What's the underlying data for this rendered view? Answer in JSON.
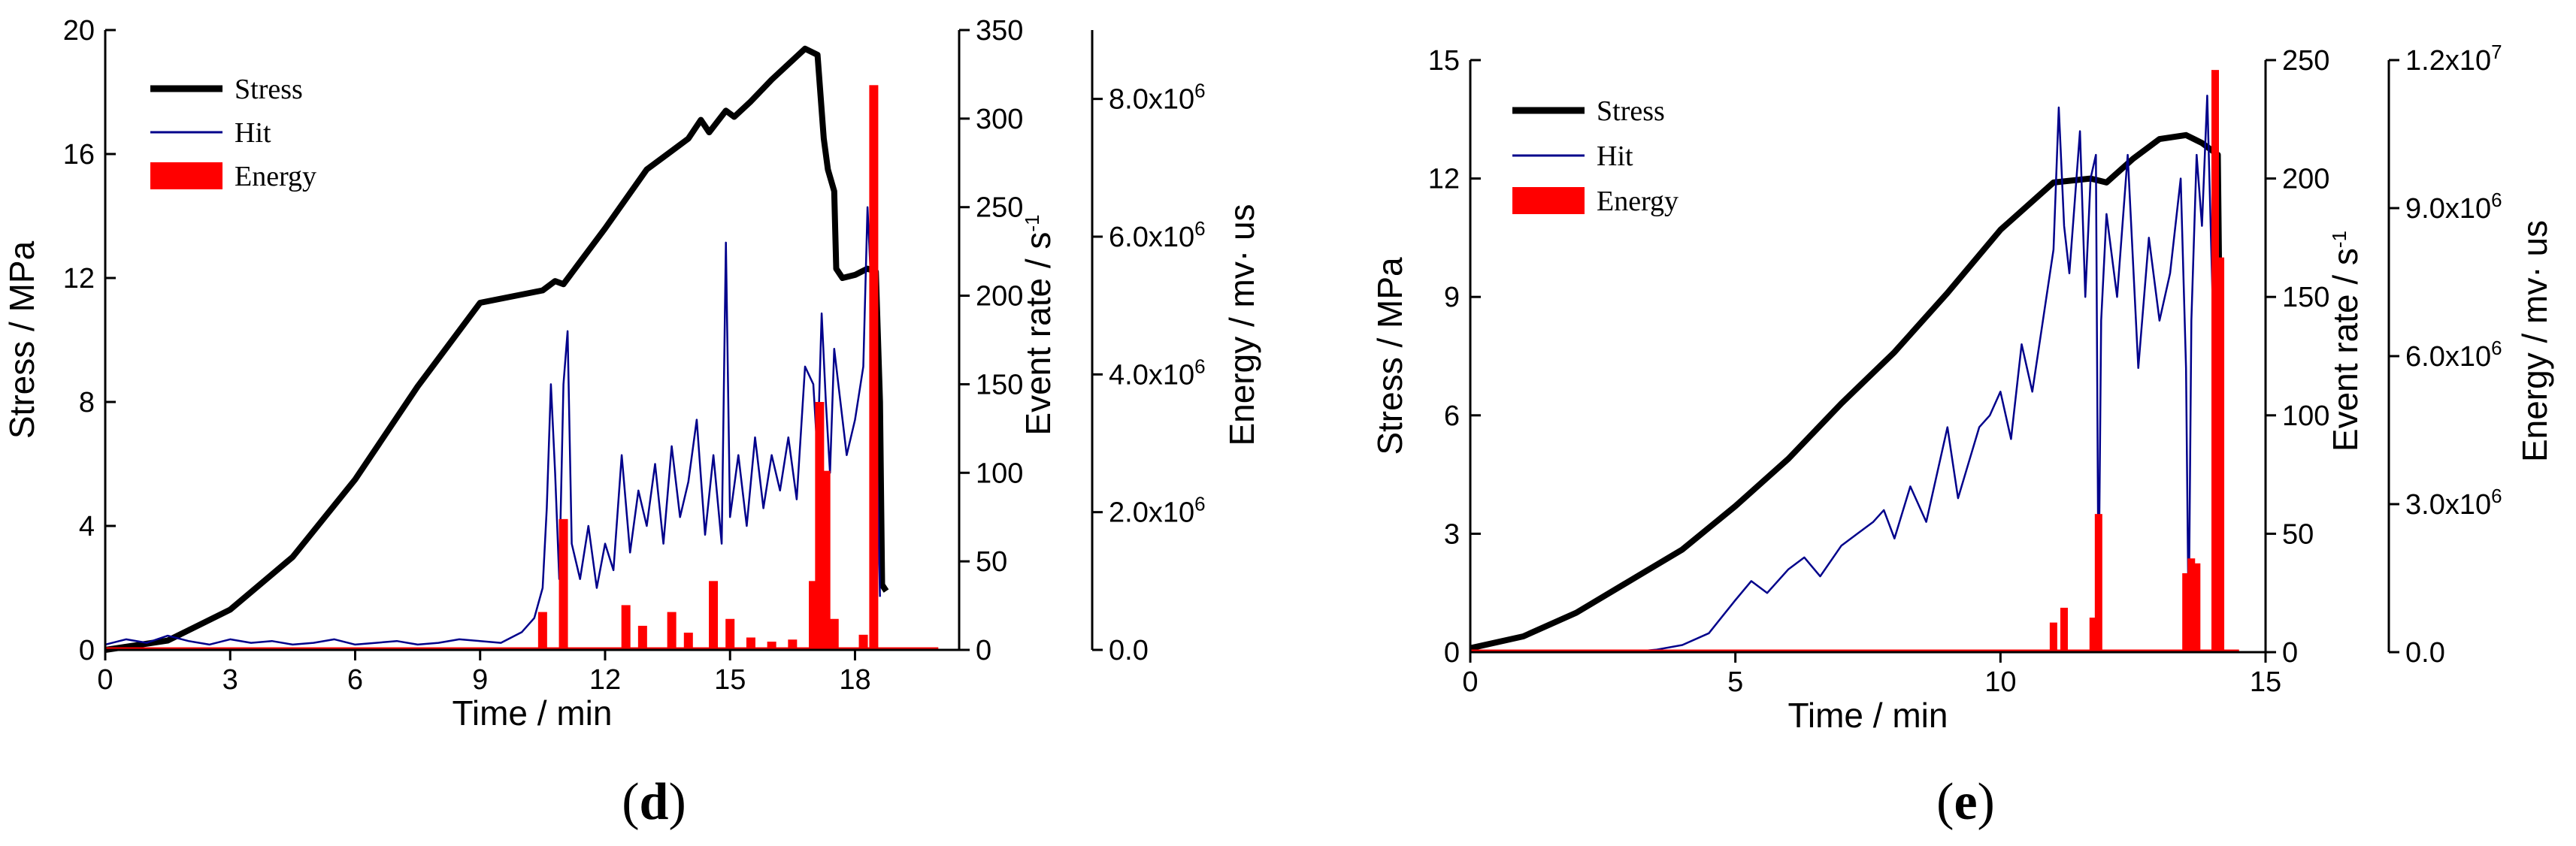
{
  "chart_data": [
    {
      "type": "line",
      "panel_label": "d",
      "xlabel": "Time / min",
      "xlim": [
        0,
        20.5
      ],
      "xticks": [
        0,
        3,
        6,
        9,
        12,
        15,
        18
      ],
      "xtick_labels": [
        "0",
        "3",
        "6",
        "9",
        "12",
        "15",
        "18"
      ],
      "axes": {
        "stress": {
          "label": "Stress / MPa",
          "lim": [
            0,
            20
          ],
          "ticks": [
            0,
            4,
            8,
            12,
            16,
            20
          ],
          "tick_labels": [
            "0",
            "4",
            "8",
            "12",
            "16",
            "20"
          ]
        },
        "event_rate": {
          "label": "Event rate / s",
          "label_sup": "-1",
          "lim": [
            0,
            350
          ],
          "ticks": [
            0,
            50,
            100,
            150,
            200,
            250,
            300,
            350
          ],
          "tick_labels": [
            "0",
            "50",
            "100",
            "150",
            "200",
            "250",
            "300",
            "350"
          ]
        },
        "energy": {
          "label": "Energy / mv· us",
          "lim": [
            0,
            9000000
          ],
          "ticks": [
            0,
            2000000,
            4000000,
            6000000,
            8000000
          ],
          "tick_labels": [
            "0.0",
            "2.0x10",
            "4.0x10",
            "6.0x10",
            "8.0x10"
          ],
          "tick_sup": [
            "",
            "6",
            "6",
            "6",
            "6"
          ]
        }
      },
      "legend": [
        {
          "label": "Stress",
          "color": "#000000",
          "kind": "line"
        },
        {
          "label": "Hit",
          "color": "#00008b",
          "kind": "line"
        },
        {
          "label": "Energy",
          "color": "#ff0000",
          "kind": "bar"
        }
      ],
      "series": [
        {
          "name": "Stress",
          "axis": "stress",
          "color": "#000000",
          "x": [
            0,
            1.5,
            3,
            4.5,
            6,
            7.5,
            9,
            10.5,
            10.8,
            11,
            12,
            13,
            14,
            14.3,
            14.5,
            14.9,
            15.1,
            15.5,
            16,
            16.8,
            17.1,
            17.25,
            17.35,
            17.5,
            17.55,
            17.7,
            18,
            18.3,
            18.5,
            18.6,
            18.65,
            18.75
          ],
          "y": [
            0,
            0.3,
            1.3,
            3,
            5.5,
            8.5,
            11.2,
            11.6,
            11.9,
            11.8,
            13.6,
            15.5,
            16.5,
            17.1,
            16.7,
            17.4,
            17.2,
            17.7,
            18.4,
            19.4,
            19.2,
            16.5,
            15.5,
            14.8,
            12.3,
            12.0,
            12.1,
            12.3,
            12.2,
            8.0,
            2.1,
            1.9
          ]
        },
        {
          "name": "Hit",
          "axis": "event_rate",
          "color": "#00008b",
          "x": [
            0,
            0.5,
            1,
            1.5,
            2,
            2.5,
            3,
            3.5,
            4,
            4.5,
            5,
            5.5,
            6,
            6.5,
            7,
            7.5,
            8,
            8.5,
            9,
            9.5,
            10,
            10.3,
            10.5,
            10.6,
            10.7,
            10.8,
            10.9,
            11,
            11.1,
            11.2,
            11.4,
            11.6,
            11.8,
            12,
            12.2,
            12.4,
            12.6,
            12.8,
            13,
            13.2,
            13.4,
            13.6,
            13.8,
            14,
            14.2,
            14.4,
            14.6,
            14.8,
            14.9,
            15,
            15.2,
            15.4,
            15.6,
            15.8,
            16,
            16.2,
            16.4,
            16.6,
            16.8,
            17,
            17.1,
            17.2,
            17.3,
            17.4,
            17.5,
            17.6,
            17.8,
            18,
            18.2,
            18.3,
            18.4,
            18.5,
            18.6
          ],
          "y": [
            3,
            6,
            4,
            8,
            5,
            3,
            6,
            4,
            5,
            3,
            4,
            6,
            3,
            4,
            5,
            3,
            4,
            6,
            5,
            4,
            10,
            18,
            35,
            80,
            150,
            100,
            40,
            150,
            180,
            60,
            40,
            70,
            35,
            60,
            45,
            110,
            55,
            90,
            70,
            105,
            60,
            115,
            75,
            95,
            130,
            65,
            110,
            60,
            230,
            75,
            110,
            70,
            120,
            80,
            110,
            90,
            120,
            85,
            160,
            150,
            110,
            190,
            140,
            100,
            170,
            150,
            110,
            130,
            160,
            250,
            200,
            140,
            30
          ]
        },
        {
          "name": "Energy",
          "axis": "energy",
          "color": "#ff0000",
          "kind": "bars",
          "x": [
            10.5,
            11.0,
            12.5,
            12.9,
            13.6,
            14.0,
            14.6,
            15.0,
            15.5,
            16.0,
            16.5,
            17.0,
            17.15,
            17.3,
            17.5,
            18.2,
            18.45
          ],
          "y": [
            550000,
            1900000,
            650000,
            350000,
            550000,
            250000,
            1000000,
            450000,
            180000,
            120000,
            150000,
            1000000,
            3600000,
            2600000,
            450000,
            220000,
            8200000
          ]
        }
      ]
    },
    {
      "type": "line",
      "panel_label": "e",
      "xlabel": "Time / min",
      "xlim": [
        0,
        15
      ],
      "xticks": [
        0,
        5,
        10,
        15
      ],
      "xtick_labels": [
        "0",
        "5",
        "10",
        "15"
      ],
      "axes": {
        "stress": {
          "label": "Stress / MPa",
          "lim": [
            0,
            15
          ],
          "ticks": [
            0,
            3,
            6,
            9,
            12,
            15
          ],
          "tick_labels": [
            "0",
            "3",
            "6",
            "9",
            "12",
            "15"
          ]
        },
        "event_rate": {
          "label": "Event rate / s",
          "label_sup": "-1",
          "lim": [
            0,
            250
          ],
          "ticks": [
            0,
            50,
            100,
            150,
            200,
            250
          ],
          "tick_labels": [
            "0",
            "50",
            "100",
            "150",
            "200",
            "250"
          ]
        },
        "energy": {
          "label": "Energy / mv· us",
          "lim": [
            0,
            12000000
          ],
          "ticks": [
            0,
            3000000,
            6000000,
            9000000,
            12000000
          ],
          "tick_labels": [
            "0.0",
            "3.0x10",
            "6.0x10",
            "9.0x10",
            "1.2x10"
          ],
          "tick_sup": [
            "",
            "6",
            "6",
            "6",
            "7"
          ]
        }
      },
      "legend": [
        {
          "label": "Stress",
          "color": "#000000",
          "kind": "line"
        },
        {
          "label": "Hit",
          "color": "#00008b",
          "kind": "line"
        },
        {
          "label": "Energy",
          "color": "#ff0000",
          "kind": "bar"
        }
      ],
      "series": [
        {
          "name": "Stress",
          "axis": "stress",
          "color": "#000000",
          "x": [
            0,
            1,
            2,
            3,
            4,
            5,
            6,
            7,
            8,
            9,
            10,
            11,
            11.7,
            12,
            12.5,
            13,
            13.5,
            13.8,
            14,
            14.1,
            14.15
          ],
          "y": [
            0.1,
            0.4,
            1.0,
            1.8,
            2.6,
            3.7,
            4.9,
            6.3,
            7.6,
            9.1,
            10.7,
            11.9,
            12.0,
            11.9,
            12.5,
            13.0,
            13.1,
            12.9,
            12.7,
            12.6,
            6.5
          ]
        },
        {
          "name": "Hit",
          "axis": "event_rate",
          "color": "#00008b",
          "x": [
            0,
            1,
            2,
            3,
            3.5,
            4,
            4.5,
            5,
            5.3,
            5.6,
            6,
            6.3,
            6.6,
            7,
            7.3,
            7.6,
            7.8,
            8,
            8.3,
            8.6,
            9,
            9.2,
            9.4,
            9.6,
            9.8,
            10,
            10.2,
            10.4,
            10.6,
            10.8,
            11,
            11.1,
            11.2,
            11.3,
            11.4,
            11.5,
            11.6,
            11.7,
            11.8,
            11.85,
            11.9,
            12,
            12.2,
            12.4,
            12.6,
            12.8,
            13,
            13.2,
            13.4,
            13.5,
            13.55,
            13.6,
            13.7,
            13.8,
            13.9,
            14,
            14.1
          ],
          "y": [
            0,
            0,
            0,
            0,
            1,
            3,
            8,
            22,
            30,
            25,
            35,
            40,
            32,
            45,
            50,
            55,
            60,
            48,
            70,
            55,
            95,
            65,
            80,
            95,
            100,
            110,
            90,
            130,
            110,
            140,
            170,
            230,
            180,
            160,
            190,
            220,
            150,
            200,
            210,
            20,
            140,
            185,
            150,
            210,
            120,
            175,
            140,
            160,
            200,
            120,
            10,
            140,
            210,
            180,
            235,
            150,
            150
          ]
        },
        {
          "name": "Energy",
          "axis": "energy",
          "color": "#ff0000",
          "kind": "bars",
          "x": [
            11.0,
            11.2,
            11.75,
            11.85,
            13.5,
            13.6,
            13.7,
            14.05,
            14.15
          ],
          "y": [
            600000,
            900000,
            700000,
            2800000,
            1600000,
            1900000,
            1800000,
            11800000,
            8000000
          ]
        }
      ]
    }
  ]
}
